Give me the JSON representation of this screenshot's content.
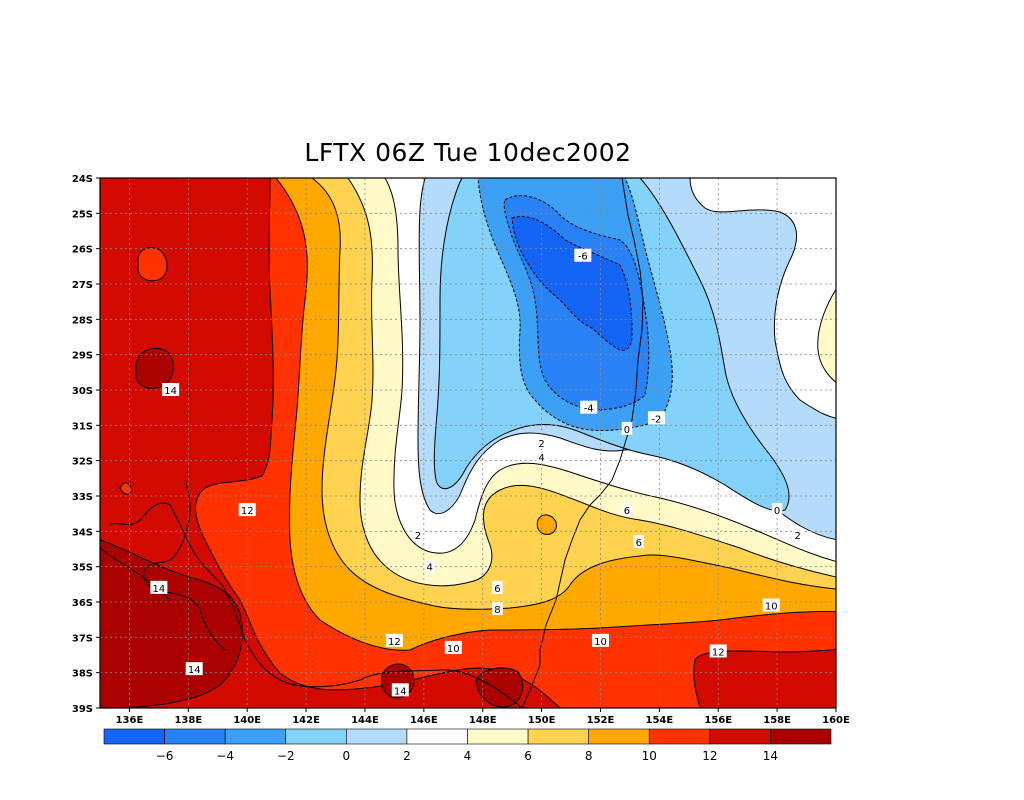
{
  "title": "LFTX 06Z Tue 10dec2002",
  "map": {
    "lat_labels": [
      "24S",
      "25S",
      "26S",
      "27S",
      "28S",
      "29S",
      "30S",
      "31S",
      "32S",
      "33S",
      "34S",
      "35S",
      "36S",
      "37S",
      "38S",
      "39S"
    ],
    "lon_labels": [
      "136E",
      "138E",
      "140E",
      "142E",
      "144E",
      "146E",
      "148E",
      "150E",
      "152E",
      "154E",
      "156E",
      "158E",
      "160E"
    ],
    "contour_labels": [
      {
        "text": "-6",
        "lon": 151.4,
        "lat": -26.2
      },
      {
        "text": "-4",
        "lon": 151.6,
        "lat": -30.5
      },
      {
        "text": "-2",
        "lon": 153.9,
        "lat": -30.8
      },
      {
        "text": "0",
        "lon": 152.9,
        "lat": -31.1
      },
      {
        "text": "2",
        "lon": 150.0,
        "lat": -31.5
      },
      {
        "text": "4",
        "lon": 150.0,
        "lat": -31.9
      },
      {
        "text": "2",
        "lon": 145.8,
        "lat": -34.1
      },
      {
        "text": "4",
        "lon": 146.2,
        "lat": -35.0
      },
      {
        "text": "6",
        "lon": 148.5,
        "lat": -35.6
      },
      {
        "text": "8",
        "lon": 148.5,
        "lat": -36.2
      },
      {
        "text": "6",
        "lon": 152.9,
        "lat": -33.4
      },
      {
        "text": "6",
        "lon": 153.3,
        "lat": -34.3
      },
      {
        "text": "0",
        "lon": 158.0,
        "lat": -33.4
      },
      {
        "text": "2",
        "lon": 158.7,
        "lat": -34.1
      },
      {
        "text": "10",
        "lon": 157.8,
        "lat": -36.1
      },
      {
        "text": "10",
        "lon": 147.0,
        "lat": -37.3
      },
      {
        "text": "10",
        "lon": 152.0,
        "lat": -37.1
      },
      {
        "text": "12",
        "lon": 140.0,
        "lat": -33.4
      },
      {
        "text": "12",
        "lon": 145.0,
        "lat": -37.1
      },
      {
        "text": "12",
        "lon": 156.0,
        "lat": -37.4
      },
      {
        "text": "14",
        "lon": 137.4,
        "lat": -30.0
      },
      {
        "text": "14",
        "lon": 137.0,
        "lat": -35.6
      },
      {
        "text": "14",
        "lon": 138.2,
        "lat": -37.9
      },
      {
        "text": "14",
        "lon": 145.2,
        "lat": -38.5
      }
    ]
  },
  "colorbar": {
    "colors": [
      "#1464f5",
      "#2882f5",
      "#3ca0f5",
      "#82d2fa",
      "#b4dcfa",
      "#ffffff",
      "#fffac8",
      "#ffd250",
      "#ffa800",
      "#ff3200",
      "#d20a00",
      "#aa0000"
    ],
    "labels": [
      "-6",
      "-4",
      "-2",
      "0",
      "2",
      "4",
      "6",
      "8",
      "10",
      "12",
      "14"
    ]
  }
}
